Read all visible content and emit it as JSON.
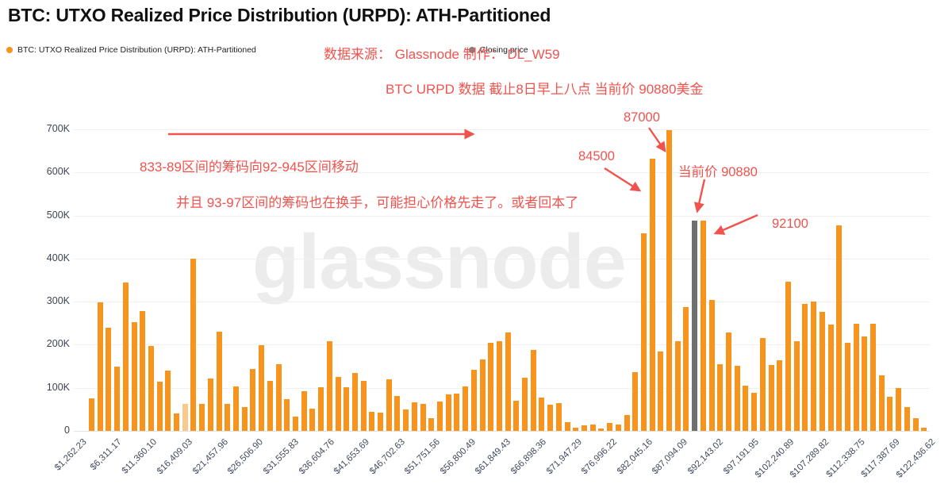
{
  "header": {
    "title": "BTC: UTXO Realized Price Distribution (URPD): ATH-Partitioned"
  },
  "legend": {
    "items": [
      {
        "label": "BTC: UTXO Realized Price Distribution (URPD): ATH-Partitioned",
        "color": "#f7941e"
      },
      {
        "label": "Closing price",
        "color": "#7f7f7f"
      }
    ]
  },
  "annotations": {
    "source_credit": "数据来源： Glassnode 制作： DL_W59",
    "data_cutoff": "BTC URPD 数据 截止8日早上八点 当前价 90880美金",
    "migration_note": "833-89区间的筹码向92-945区间移动",
    "turnover_note": "并且 93-97区间的筹码也在换手，可能担心价格先走了。或者回本了",
    "label_84500": "84500",
    "label_87000": "87000",
    "label_current_price": "当前价 90880",
    "label_92100": "92100"
  },
  "watermark": "glassnode",
  "colors": {
    "bar_orange": "#f7941e",
    "bar_orange_light": "#f8c98c",
    "bar_gray": "#6f6f6f",
    "annotation_red": "#f0534e",
    "watermark_gray": "#ececec",
    "axis_text": "#434a5c"
  },
  "chart_data": {
    "type": "bar",
    "title": "BTC: UTXO Realized Price Distribution (URPD): ATH-Partitioned",
    "xlabel": "",
    "ylabel": "",
    "grid": true,
    "legend_position": "top-left",
    "ylim_thousands": [
      0,
      700
    ],
    "y_tick_labels": [
      "0",
      "100K",
      "200K",
      "300K",
      "400K",
      "500K",
      "600K",
      "700K"
    ],
    "x_tick_labels": [
      "$1,262.23",
      "$6,311.17",
      "$11,360.10",
      "$16,409.03",
      "$21,457.96",
      "$26,506.90",
      "$31,555.83",
      "$36,604.76",
      "$41,653.69",
      "$46,702.63",
      "$51,751.56",
      "$56,800.49",
      "$61,849.43",
      "$66,898.36",
      "$71,947.29",
      "$76,996.22",
      "$82,045.16",
      "$87,094.09",
      "$92,143.02",
      "$97,191.95",
      "$102,240.89",
      "$107,289.82",
      "$112,338.75",
      "$117,387.69",
      "$122,436.62"
    ],
    "series_name": "BTC: UTXO Realized Price Distribution (URPD): ATH-Partitioned",
    "values_thousands": [
      75,
      298,
      240,
      150,
      345,
      252,
      278,
      197,
      115,
      140,
      40,
      62,
      400,
      62,
      122,
      230,
      62,
      103,
      56,
      143,
      199,
      117,
      155,
      74,
      33,
      93,
      52,
      102,
      208,
      125,
      102,
      134,
      117,
      44,
      42,
      119,
      82,
      50,
      67,
      62,
      30,
      68,
      84,
      86,
      104,
      142,
      165,
      205,
      209,
      228,
      70,
      123,
      188,
      78,
      60,
      64,
      21,
      8,
      13,
      15,
      5,
      18,
      15,
      37,
      137,
      458,
      632,
      185,
      698,
      208,
      287,
      489,
      489,
      304,
      154,
      229,
      152,
      105,
      88,
      215,
      153,
      164,
      346,
      209,
      294,
      301,
      277,
      246,
      478,
      205,
      248,
      219,
      248,
      129,
      79,
      99,
      56,
      30,
      7
    ],
    "closing_price_bar_index": 71,
    "light_bar_indices": [
      11
    ],
    "annotated_price_levels": [
      84500,
      87000,
      90880,
      92100
    ]
  }
}
